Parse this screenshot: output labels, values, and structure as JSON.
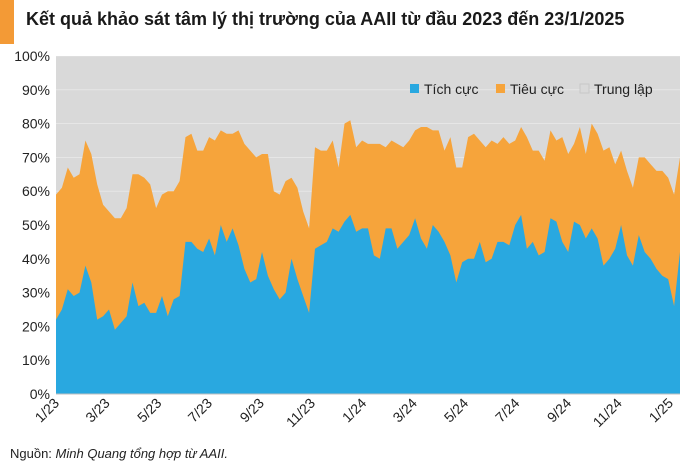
{
  "header": {
    "title": "Kết quả khảo sát tâm lý thị trường của AAII từ đầu 2023 đến 23/1/2025"
  },
  "footer": {
    "source_prefix": "Nguồn: ",
    "source_name": "Minh Quang tổng hợp từ AAII."
  },
  "colors": {
    "accent": "#f39a36",
    "bullish": "#29a8e0",
    "bearish": "#f6a43b",
    "neutral": "#d9d9d9",
    "text": "#1a1a1a"
  },
  "chart_data": {
    "type": "area",
    "stacked": true,
    "title": "Kết quả khảo sát tâm lý thị trường của AAII từ đầu 2023 đến 23/1/2025",
    "ylim": [
      0,
      100
    ],
    "y_ticks": [
      "0%",
      "10%",
      "20%",
      "30%",
      "40%",
      "50%",
      "60%",
      "70%",
      "80%",
      "90%",
      "100%"
    ],
    "x_ticks": [
      {
        "label": "1/23",
        "week": 0
      },
      {
        "label": "3/23",
        "week": 8.6
      },
      {
        "label": "5/23",
        "week": 17.4
      },
      {
        "label": "7/23",
        "week": 26
      },
      {
        "label": "9/23",
        "week": 34.8
      },
      {
        "label": "11/23",
        "week": 43.5
      },
      {
        "label": "1/24",
        "week": 52.2
      },
      {
        "label": "3/24",
        "week": 60.8
      },
      {
        "label": "5/24",
        "week": 69.5
      },
      {
        "label": "7/24",
        "week": 78.2
      },
      {
        "label": "9/24",
        "week": 87
      },
      {
        "label": "11/24",
        "week": 95.6
      },
      {
        "label": "1/25",
        "week": 104.3
      }
    ],
    "legend_position": "top-right",
    "series": [
      {
        "name": "Tích cực",
        "values": [
          22,
          25,
          31,
          29,
          30,
          38,
          33,
          22,
          23,
          25,
          19,
          21,
          23,
          33,
          26,
          27,
          24,
          24,
          29,
          23,
          28,
          29,
          45,
          45,
          43,
          42,
          46,
          41,
          50,
          45,
          49,
          44,
          37,
          33,
          34,
          42,
          35,
          31,
          28,
          30,
          40,
          34,
          29,
          24,
          43,
          44,
          45,
          49,
          48,
          51,
          53,
          48,
          49,
          49,
          41,
          40,
          49,
          49,
          43,
          45,
          47,
          52,
          46,
          43,
          50,
          48,
          45,
          41,
          33,
          39,
          40,
          40,
          45,
          39,
          40,
          45,
          45,
          44,
          50,
          53,
          43,
          45,
          41,
          42,
          52,
          51,
          45,
          42,
          51,
          50,
          46,
          49,
          46,
          38,
          40,
          43,
          50,
          41,
          38,
          47,
          42,
          40,
          37,
          35,
          34,
          26,
          42
        ],
        "color": "#29a8e0"
      },
      {
        "name": "Tiêu cực",
        "values": [
          37,
          36,
          36,
          35,
          35,
          37,
          38,
          40,
          33,
          29,
          33,
          31,
          32,
          32,
          39,
          37,
          38,
          31,
          30,
          37,
          32,
          34,
          31,
          32,
          29,
          30,
          30,
          34,
          28,
          32,
          28,
          34,
          37,
          39,
          36,
          29,
          36,
          29,
          31,
          33,
          24,
          27,
          25,
          25,
          30,
          28,
          27,
          26,
          19,
          29,
          28,
          25,
          26,
          25,
          33,
          34,
          24,
          26,
          31,
          28,
          28,
          26,
          33,
          36,
          28,
          30,
          27,
          35,
          34,
          28,
          36,
          37,
          30,
          34,
          35,
          29,
          31,
          30,
          25,
          26,
          33,
          27,
          31,
          27,
          26,
          24,
          31,
          29,
          23,
          29,
          25,
          31,
          31,
          34,
          33,
          25,
          22,
          25,
          23,
          23,
          28,
          28,
          29,
          31,
          30,
          33,
          28
        ],
        "color": "#f6a43b"
      },
      {
        "name": "Trung lập",
        "values": "remainder to 100%",
        "color": "#d9d9d9"
      }
    ]
  }
}
